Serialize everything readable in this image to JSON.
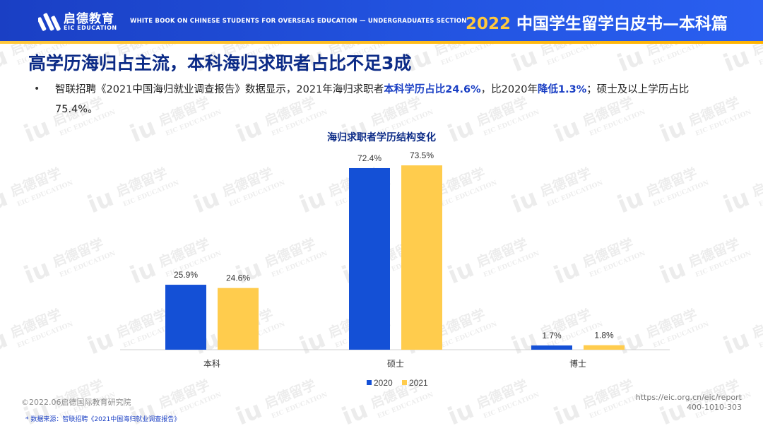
{
  "header": {
    "logo_cn": "启德教育",
    "logo_en": "EIC EDUCATION",
    "subtitle": "WHITE BOOK ON CHINESE STUDENTS FOR OVERSEAS EDUCATION — UNDERGRADUATES SECTION",
    "title_year": "2022",
    "title_text": "中国学生留学白皮书",
    "title_dash": "—",
    "title_section": "本科篇"
  },
  "page_title": "高学历海归占主流，本科海归求职者占比不足3成",
  "bullet": {
    "dot": "•",
    "t1": "智联招聘《2021中国海归就业调查报告》数据显示，2021年海归求职者",
    "h1": "本科学历占比24.6%",
    "t2": "，比2020年",
    "h2": "降低1.3%",
    "t3": "；硕士及以上学历占比 75.4%。"
  },
  "watermark": {
    "cn": "启德留学",
    "en": "EIC EDUCATION"
  },
  "colors": {
    "s2020": "#1450d6",
    "s2021": "#ffcc4d",
    "accent": "#1a3fc4"
  },
  "chart_data": {
    "type": "bar",
    "title": "海归求职者学历结构变化",
    "categories": [
      "本科",
      "硕士",
      "博士"
    ],
    "series": [
      {
        "name": "2020",
        "values": [
          25.9,
          72.4,
          1.7
        ],
        "labels": [
          "25.9%",
          "72.4%",
          "1.7%"
        ]
      },
      {
        "name": "2021",
        "values": [
          24.6,
          73.5,
          1.8
        ],
        "labels": [
          "24.6%",
          "73.5%",
          "1.8%"
        ]
      }
    ],
    "ylim": [
      0,
      80
    ],
    "xlabel": "",
    "ylabel": "",
    "grid": false,
    "legend": "bottom"
  },
  "footer": {
    "copyright": "©2022.06启德国际教育研究院",
    "source": "* 数据来源：智联招聘《2021中国海归就业调查报告》",
    "url": "https://eic.org.cn/eic/report",
    "phone": "400-1010-303"
  }
}
